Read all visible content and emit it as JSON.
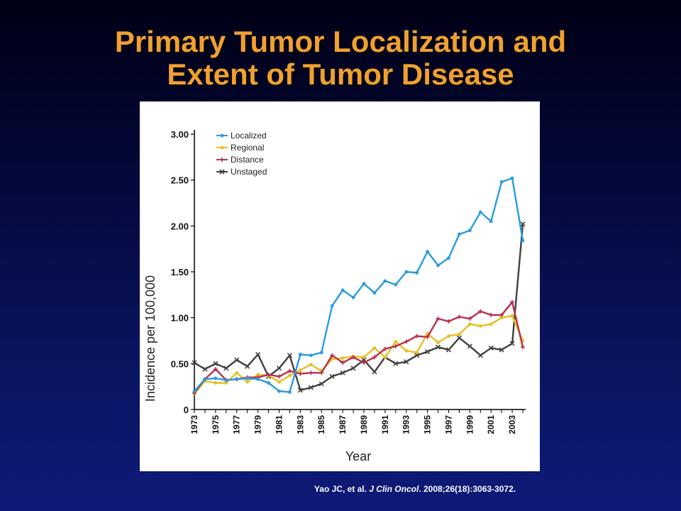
{
  "title": {
    "line1": "Primary Tumor Localization and",
    "line2": "Extent of Tumor Disease"
  },
  "citation": {
    "authors": "Yao JC, et al. ",
    "journal": "J Clin Oncol",
    "rest": ". 2008;26(18):3063-3072."
  },
  "colors": {
    "background_top": "#000014",
    "background_bottom": "#0e1a78",
    "title": "#f0a030",
    "localized": "#2a9be0",
    "regional": "#e8c020",
    "distance": "#b83050",
    "unstaged": "#404040"
  },
  "chart_data": {
    "type": "line",
    "xlabel": "Year",
    "ylabel": "Incidence per 100,000",
    "ylim": [
      0,
      3.0
    ],
    "xlim": [
      1973,
      2004
    ],
    "y_ticks": [
      0,
      0.5,
      1.0,
      1.5,
      2.0,
      2.5,
      3.0
    ],
    "y_tick_labels": [
      "0",
      "0.50",
      "1.00",
      "1.50",
      "2.00",
      "2.50",
      "3.00"
    ],
    "x_tick_labels": [
      "1973",
      "1975",
      "1977",
      "1979",
      "1981",
      "1983",
      "1985",
      "1987",
      "1989",
      "1991",
      "1993",
      "1995",
      "1997",
      "1999",
      "2001",
      "2003"
    ],
    "legend_position": "top-left",
    "x": [
      1973,
      1974,
      1975,
      1976,
      1977,
      1978,
      1979,
      1980,
      1981,
      1982,
      1983,
      1984,
      1985,
      1986,
      1987,
      1988,
      1989,
      1990,
      1991,
      1992,
      1993,
      1994,
      1995,
      1996,
      1997,
      1998,
      1999,
      2000,
      2001,
      2002,
      2003,
      2004
    ],
    "series": [
      {
        "name": "Localized",
        "marker": "dot",
        "color": "#2a9be0",
        "values": [
          0.2,
          0.33,
          0.34,
          0.32,
          0.33,
          0.34,
          0.33,
          0.29,
          0.2,
          0.19,
          0.6,
          0.59,
          0.62,
          1.13,
          1.3,
          1.22,
          1.37,
          1.27,
          1.4,
          1.36,
          1.5,
          1.49,
          1.72,
          1.57,
          1.65,
          1.91,
          1.95,
          2.15,
          2.05,
          2.48,
          2.52,
          1.84
        ]
      },
      {
        "name": "Regional",
        "marker": "dot",
        "color": "#e8c020",
        "values": [
          0.17,
          0.31,
          0.29,
          0.29,
          0.4,
          0.3,
          0.38,
          0.37,
          0.3,
          0.37,
          0.43,
          0.49,
          0.42,
          0.55,
          0.56,
          0.58,
          0.57,
          0.67,
          0.57,
          0.74,
          0.64,
          0.62,
          0.83,
          0.73,
          0.8,
          0.82,
          0.93,
          0.91,
          0.93,
          1.0,
          1.02,
          0.75
        ]
      },
      {
        "name": "Distance",
        "marker": "plus",
        "color": "#b83050",
        "values": [
          0.18,
          0.33,
          0.44,
          0.32,
          0.33,
          0.35,
          0.35,
          0.38,
          0.36,
          0.42,
          0.39,
          0.4,
          0.4,
          0.59,
          0.51,
          0.57,
          0.51,
          0.57,
          0.66,
          0.69,
          0.74,
          0.8,
          0.79,
          0.99,
          0.96,
          1.01,
          0.99,
          1.07,
          1.03,
          1.03,
          1.17,
          0.68
        ]
      },
      {
        "name": "Unstaged",
        "marker": "x",
        "color": "#404040",
        "values": [
          0.51,
          0.44,
          0.5,
          0.45,
          0.54,
          0.47,
          0.6,
          0.36,
          0.45,
          0.59,
          0.21,
          0.24,
          0.28,
          0.36,
          0.4,
          0.45,
          0.54,
          0.41,
          0.57,
          0.5,
          0.52,
          0.59,
          0.63,
          0.68,
          0.65,
          0.78,
          0.69,
          0.59,
          0.67,
          0.65,
          0.72,
          2.02
        ]
      }
    ]
  }
}
